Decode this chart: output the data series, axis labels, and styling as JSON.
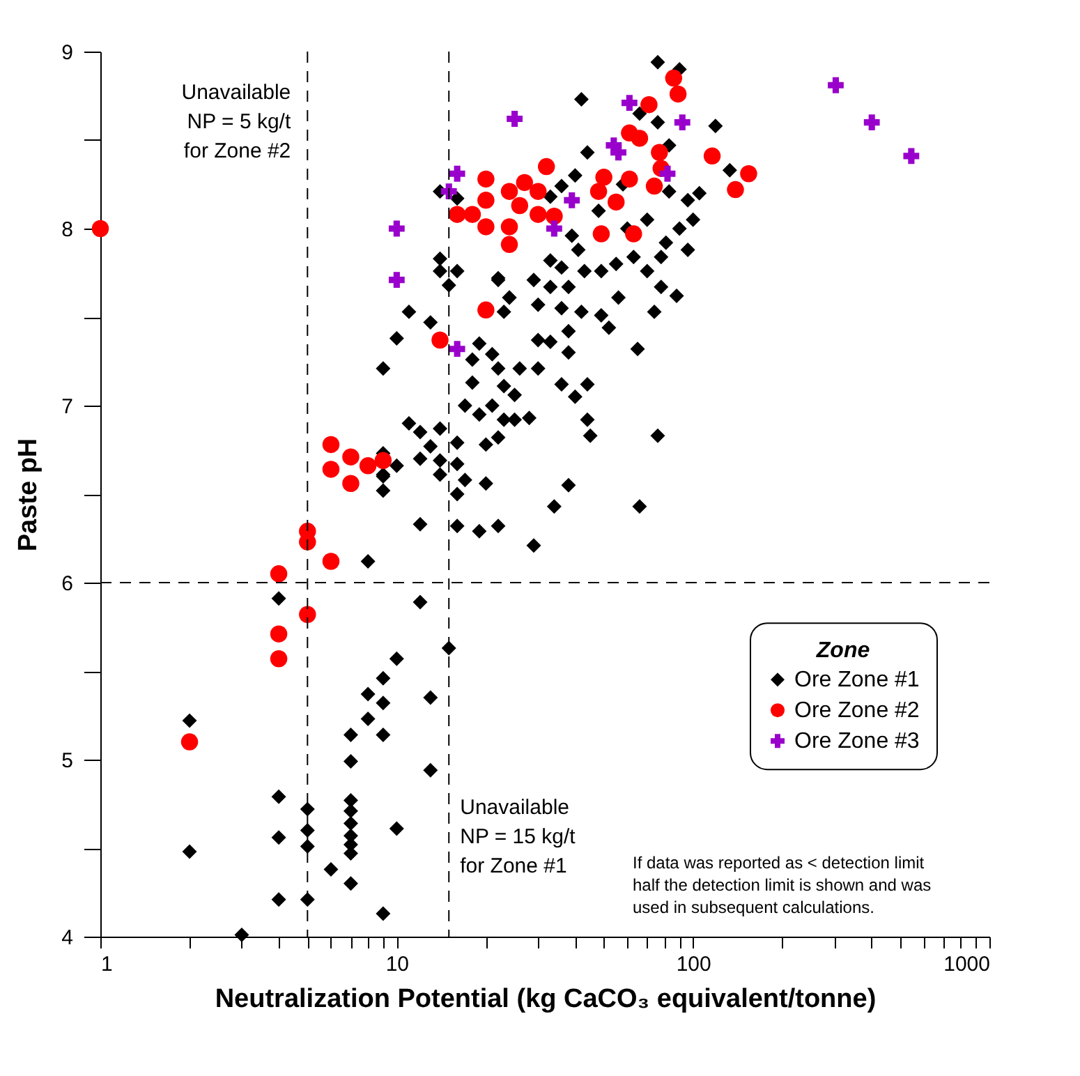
{
  "chart_data": {
    "type": "scatter",
    "xlabel": "Neutralization Potential (kg CaCO₃ equivalent/tonne)",
    "ylabel": "Paste pH",
    "legend_title": "Zone",
    "legend": "right",
    "log": "x",
    "grid": false,
    "xlim": [
      1,
      1000
    ],
    "ylim": [
      4,
      9
    ],
    "xticks": [
      1,
      {
        "value": 2,
        "label": null
      },
      {
        "value": 3,
        "label": null
      },
      {
        "value": 4,
        "label": null
      },
      {
        "value": 5,
        "label": null
      },
      {
        "value": 6,
        "label": null
      },
      {
        "value": 7,
        "label": null
      },
      {
        "value": 8,
        "label": null
      },
      {
        "value": 9,
        "label": null
      },
      10,
      {
        "value": 20,
        "label": null
      },
      {
        "value": 30,
        "label": null
      },
      {
        "value": 40,
        "label": null
      },
      {
        "value": 50,
        "label": null
      },
      {
        "value": 60,
        "label": null
      },
      {
        "value": 70,
        "label": null
      },
      {
        "value": 80,
        "label": null
      },
      {
        "value": 90,
        "label": null
      },
      100,
      {
        "value": 200,
        "label": null
      },
      {
        "value": 300,
        "label": null
      },
      {
        "value": 400,
        "label": null
      },
      {
        "value": 500,
        "label": null
      },
      {
        "value": 600,
        "label": null
      },
      {
        "value": 700,
        "label": null
      },
      {
        "value": 800,
        "label": null
      },
      {
        "value": 900,
        "label": null
      },
      1000
    ],
    "yticks": [
      4,
      {
        "value": 4.5,
        "label": null
      },
      5,
      {
        "value": 5.5,
        "label": null
      },
      6,
      {
        "value": 6.5,
        "label": null
      },
      7,
      {
        "value": 7.5,
        "label": null
      },
      8,
      {
        "value": 8.5,
        "label": null
      },
      9
    ],
    "series": [
      {
        "name": "Ore Zone #1",
        "color": "#000000",
        "marker": "diamond",
        "x": [
          2,
          2,
          3,
          4,
          4,
          4,
          4,
          5,
          5,
          5,
          5,
          6,
          7,
          7,
          7,
          7,
          7,
          7,
          7,
          7,
          7,
          8,
          9,
          9,
          8,
          9,
          10,
          9,
          10,
          13,
          13,
          15,
          12,
          8,
          12,
          16,
          19,
          22,
          16,
          9,
          9,
          17,
          20,
          76,
          90,
          42,
          119,
          133,
          76,
          44,
          83,
          105,
          96,
          83,
          36,
          33,
          39,
          41,
          33,
          36,
          43,
          49,
          55,
          63,
          70,
          78,
          81,
          96,
          29,
          33,
          38,
          22,
          24,
          30,
          36,
          42,
          49,
          56,
          74,
          88,
          78,
          52,
          38,
          30,
          33,
          38,
          65,
          26,
          30,
          36,
          40,
          44,
          25,
          28,
          25,
          44,
          45,
          76,
          38,
          66,
          34,
          29,
          14,
          16,
          14,
          14,
          16,
          15,
          22,
          24,
          23,
          11,
          13,
          10,
          9,
          19,
          21,
          18,
          22,
          18,
          23,
          17,
          21,
          19,
          23,
          11,
          12,
          14,
          16,
          13,
          12,
          14,
          16,
          20,
          22,
          14,
          10,
          9,
          9,
          60,
          70,
          90,
          100,
          58,
          48,
          40,
          66
        ],
        "values": [
          5.22,
          4.48,
          4.01,
          5.91,
          4.79,
          4.56,
          4.21,
          4.72,
          4.6,
          4.51,
          4.21,
          4.38,
          4.77,
          4.71,
          4.64,
          4.57,
          4.52,
          4.47,
          4.3,
          5.14,
          4.99,
          5.23,
          5.32,
          5.14,
          5.37,
          5.46,
          5.57,
          4.13,
          4.61,
          5.35,
          4.94,
          5.63,
          5.89,
          6.12,
          6.33,
          6.32,
          6.29,
          6.32,
          6.5,
          6.52,
          6.6,
          6.58,
          6.56,
          8.94,
          8.9,
          8.73,
          8.58,
          8.33,
          8.6,
          8.43,
          8.47,
          8.2,
          8.16,
          8.21,
          8.24,
          8.18,
          7.96,
          7.88,
          7.82,
          7.78,
          7.76,
          7.76,
          7.8,
          7.84,
          7.76,
          7.84,
          7.92,
          7.88,
          7.71,
          7.67,
          7.67,
          7.71,
          7.61,
          7.57,
          7.55,
          7.53,
          7.51,
          7.61,
          7.53,
          7.62,
          7.67,
          7.44,
          7.42,
          7.37,
          7.36,
          7.3,
          7.32,
          7.21,
          7.21,
          7.12,
          7.05,
          7.12,
          7.06,
          6.93,
          6.92,
          6.92,
          6.83,
          6.83,
          6.55,
          6.43,
          6.43,
          6.21,
          8.21,
          8.17,
          7.83,
          7.76,
          7.76,
          7.68,
          7.72,
          7.61,
          7.53,
          7.53,
          7.47,
          7.38,
          7.21,
          7.35,
          7.29,
          7.26,
          7.21,
          7.13,
          7.11,
          7.0,
          7.0,
          6.95,
          6.92,
          6.9,
          6.85,
          6.87,
          6.79,
          6.77,
          6.7,
          6.69,
          6.67,
          6.78,
          6.82,
          6.61,
          6.66,
          6.73,
          6.61,
          8.0,
          8.05,
          8.0,
          8.05,
          8.25,
          8.1,
          8.3,
          8.65
        ]
      },
      {
        "name": "Ore Zone #2",
        "color": "#ff0000",
        "marker": "circle",
        "x": [
          1,
          2,
          4,
          4,
          4,
          5,
          5,
          5,
          6,
          6,
          6,
          7,
          7,
          8,
          9,
          20,
          24,
          20,
          16,
          18,
          20,
          24,
          24,
          20,
          14,
          86,
          89,
          71,
          61,
          66,
          77,
          116,
          154,
          139,
          78,
          61,
          74,
          50,
          48,
          55,
          49,
          63,
          32,
          27,
          30,
          26,
          30,
          34
        ],
        "values": [
          8.0,
          5.1,
          6.05,
          5.71,
          5.57,
          6.29,
          6.23,
          5.82,
          6.12,
          6.78,
          6.64,
          6.56,
          6.71,
          6.66,
          6.69,
          8.28,
          8.21,
          8.16,
          8.08,
          8.08,
          8.01,
          8.01,
          7.91,
          7.54,
          7.37,
          8.85,
          8.76,
          8.7,
          8.54,
          8.51,
          8.43,
          8.41,
          8.31,
          8.22,
          8.34,
          8.28,
          8.24,
          8.29,
          8.21,
          8.15,
          7.97,
          7.97,
          8.35,
          8.26,
          8.21,
          8.13,
          8.08,
          8.07
        ]
      },
      {
        "name": "Ore Zone #3",
        "color": "#9900cc",
        "marker": "cross",
        "x": [
          25,
          16,
          15,
          10,
          10,
          16,
          61,
          92,
          54,
          56,
          82,
          39,
          34,
          303,
          401,
          545
        ],
        "values": [
          8.62,
          8.31,
          8.21,
          8.0,
          7.71,
          7.32,
          8.71,
          8.6,
          8.47,
          8.43,
          8.31,
          8.16,
          8.0,
          8.81,
          8.6,
          8.41
        ]
      }
    ],
    "ref_lines": [
      {
        "axis": "x",
        "value": 5,
        "label": "Unavailable\nNP = 5 kg/t\nfor Zone #2",
        "line_style": "dashed"
      },
      {
        "axis": "x",
        "value": 15,
        "label": "Unavailable\nNP = 15 kg/t\nfor Zone #1",
        "line_style": "dashed"
      },
      {
        "axis": "y",
        "value": 6,
        "label": null,
        "line_style": "dashed"
      }
    ],
    "annotations": [
      "If data was reported as < detection limit\nhalf the detection limit is shown and was\nused in subsequent calculations."
    ]
  }
}
